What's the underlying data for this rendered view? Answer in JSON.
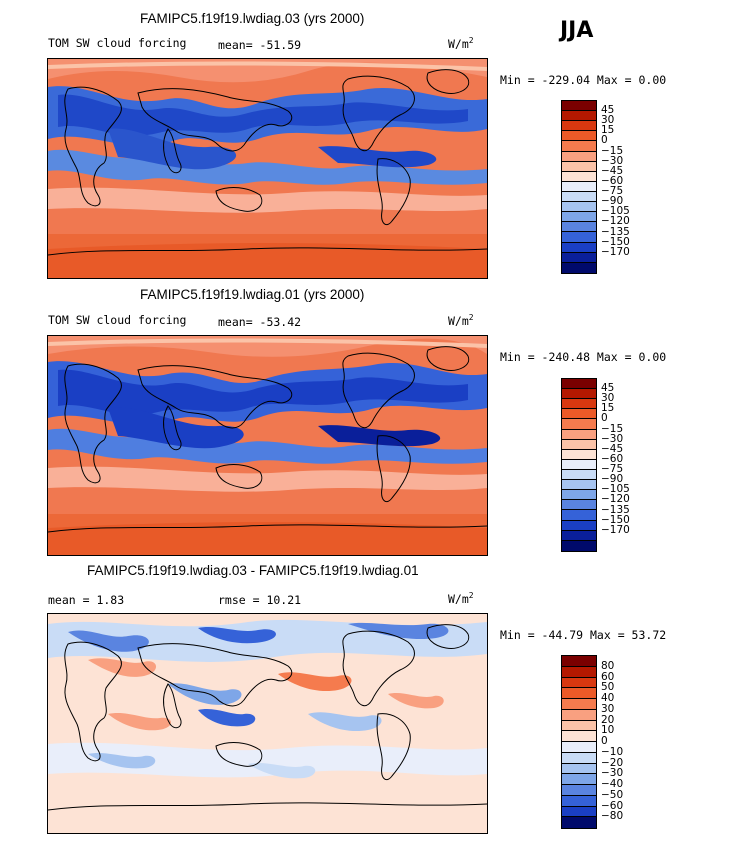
{
  "season": "JJA",
  "units_main": "W/m",
  "units_sup": "2",
  "panels": [
    {
      "title": "FAMIPC5.f19f19.lwdiag.03 (yrs 2000)",
      "left_label": "TOM SW cloud forcing",
      "stat_label": "mean= -51.59",
      "minmax": "Min = -229.04 Max =   0.00",
      "colorbar": {
        "labels": [
          "45",
          "30",
          "15",
          "0",
          "−15",
          "−30",
          "−45",
          "−60",
          "−75",
          "−90",
          "−105",
          "−120",
          "−135",
          "−150",
          "−170"
        ],
        "colors": [
          "#7a0000",
          "#b41800",
          "#d83810",
          "#ec5a28",
          "#f57b4e",
          "#f9a080",
          "#fbc3a8",
          "#fde3d5",
          "#e9eefa",
          "#c9dcf6",
          "#a6c4f0",
          "#7ea6e8",
          "#5a84e0",
          "#3562d8",
          "#1a3fc4",
          "#0a1f9a",
          "#000a6b"
        ]
      }
    },
    {
      "title": "FAMIPC5.f19f19.lwdiag.01 (yrs 2000)",
      "left_label": "TOM SW cloud forcing",
      "stat_label": "mean= -53.42",
      "minmax": "Min = -240.48 Max =   0.00",
      "colorbar": {
        "labels": [
          "45",
          "30",
          "15",
          "0",
          "−15",
          "−30",
          "−45",
          "−60",
          "−75",
          "−90",
          "−105",
          "−120",
          "−135",
          "−150",
          "−170"
        ],
        "colors": [
          "#7a0000",
          "#b41800",
          "#d83810",
          "#ec5a28",
          "#f57b4e",
          "#f9a080",
          "#fbc3a8",
          "#fde3d5",
          "#e9eefa",
          "#c9dcf6",
          "#a6c4f0",
          "#7ea6e8",
          "#5a84e0",
          "#3562d8",
          "#1a3fc4",
          "#0a1f9a",
          "#000a6b"
        ]
      }
    },
    {
      "title": "FAMIPC5.f19f19.lwdiag.03 - FAMIPC5.f19f19.lwdiag.01",
      "left_label": "mean =    1.83",
      "stat_label": "rmse =   10.21",
      "minmax": "Min = -44.79 Max =  53.72",
      "colorbar": {
        "labels": [
          "80",
          "60",
          "50",
          "40",
          "30",
          "20",
          "10",
          "0",
          "−10",
          "−20",
          "−30",
          "−40",
          "−50",
          "−60",
          "−80"
        ],
        "colors": [
          "#7a0000",
          "#b41800",
          "#d83810",
          "#ec5a28",
          "#f57b4e",
          "#f9a080",
          "#fbc3a8",
          "#fde3d5",
          "#e9eefa",
          "#c9dcf6",
          "#a6c4f0",
          "#7ea6e8",
          "#5a84e0",
          "#3562d8",
          "#1a3fc4",
          "#000a6b"
        ]
      }
    }
  ],
  "chart_data": [
    {
      "type": "heatmap",
      "title": "FAMIPC5.f19f19.lwdiag.03 (yrs 2000)",
      "variable": "TOM SW cloud forcing",
      "units": "W/m2",
      "season": "JJA",
      "mean": -51.59,
      "min": -229.04,
      "max": 0.0,
      "contour_levels": [
        45,
        30,
        15,
        0,
        -15,
        -30,
        -45,
        -60,
        -75,
        -90,
        -105,
        -120,
        -135,
        -150,
        -170
      ]
    },
    {
      "type": "heatmap",
      "title": "FAMIPC5.f19f19.lwdiag.01 (yrs 2000)",
      "variable": "TOM SW cloud forcing",
      "units": "W/m2",
      "season": "JJA",
      "mean": -53.42,
      "min": -240.48,
      "max": 0.0,
      "contour_levels": [
        45,
        30,
        15,
        0,
        -15,
        -30,
        -45,
        -60,
        -75,
        -90,
        -105,
        -120,
        -135,
        -150,
        -170
      ]
    },
    {
      "type": "heatmap",
      "title": "FAMIPC5.f19f19.lwdiag.03 - FAMIPC5.f19f19.lwdiag.01",
      "units": "W/m2",
      "season": "JJA",
      "mean": 1.83,
      "rmse": 10.21,
      "min": -44.79,
      "max": 53.72,
      "contour_levels": [
        80,
        60,
        50,
        40,
        30,
        20,
        10,
        0,
        -10,
        -20,
        -30,
        -40,
        -50,
        -60,
        -80
      ]
    }
  ]
}
